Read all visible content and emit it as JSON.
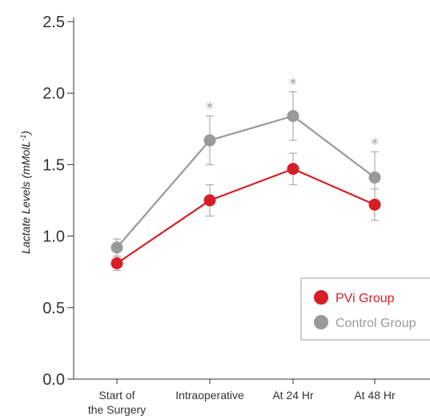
{
  "chart_data": {
    "type": "line",
    "title": "",
    "xlabel": "",
    "ylabel": "Lactate Levels (mMolL",
    "ylabel_sup": "-1",
    "ylabel_close": ")",
    "categories": [
      [
        "Start of",
        "the Surgery"
      ],
      [
        "Intraoperative"
      ],
      [
        "At 24 Hr"
      ],
      [
        "At 48 Hr"
      ]
    ],
    "ylim": [
      0,
      2.5
    ],
    "yticks": [
      "0.0",
      "0.5",
      "1.0",
      "1.5",
      "2.0",
      "2.5"
    ],
    "grid": false,
    "legend_position": "bottom-right",
    "series": [
      {
        "name": "Control Group",
        "color": "#999999",
        "values": [
          0.92,
          1.67,
          1.84,
          1.41
        ],
        "errors": [
          0.06,
          0.17,
          0.17,
          0.18
        ],
        "significance": [
          "",
          "*",
          "*",
          "*"
        ]
      },
      {
        "name": "PVi Group",
        "color": "#d71e26",
        "values": [
          0.81,
          1.25,
          1.47,
          1.22
        ],
        "errors": [
          0.05,
          0.11,
          0.11,
          0.11
        ],
        "significance": [
          "",
          "",
          "",
          ""
        ]
      }
    ],
    "legend_order": [
      1,
      0
    ]
  }
}
